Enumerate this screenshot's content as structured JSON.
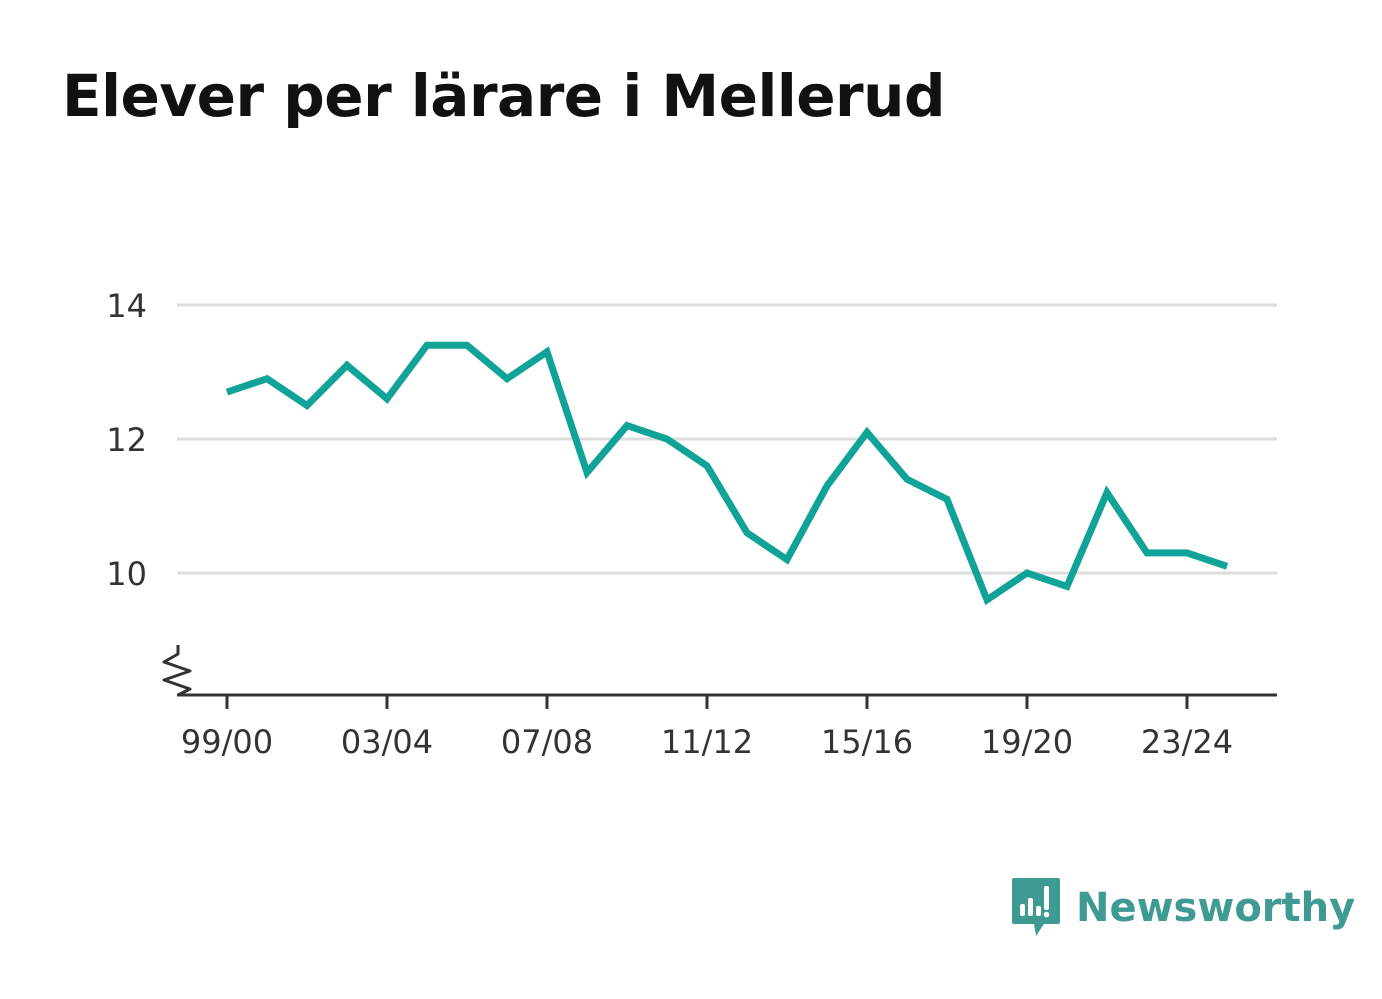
{
  "title": "Elever per lärare i Mellerud",
  "brand": {
    "name": "Newsworthy",
    "color": "#3f9a93"
  },
  "colors": {
    "line": "#11a398",
    "grid": "#dddddd",
    "axis": "#333333"
  },
  "chart_data": {
    "type": "line",
    "title": "Elever per lärare i Mellerud",
    "x": [
      "99/00",
      "00/01",
      "01/02",
      "02/03",
      "03/04",
      "04/05",
      "05/06",
      "06/07",
      "07/08",
      "08/09",
      "09/10",
      "10/11",
      "11/12",
      "12/13",
      "13/14",
      "14/15",
      "15/16",
      "16/17",
      "17/18",
      "18/19",
      "19/20",
      "20/21",
      "21/22",
      "22/23",
      "23/24",
      "24/25"
    ],
    "xticks": [
      "99/00",
      "03/04",
      "07/08",
      "11/12",
      "15/16",
      "19/20",
      "23/24"
    ],
    "series": [
      {
        "values": [
          12.7,
          12.9,
          12.5,
          13.1,
          12.6,
          13.4,
          13.4,
          12.9,
          13.3,
          11.5,
          12.2,
          12.0,
          11.6,
          10.6,
          10.2,
          11.3,
          12.1,
          11.4,
          11.1,
          9.6,
          10.0,
          9.8,
          11.2,
          10.3,
          10.3,
          10.1
        ]
      }
    ],
    "yticks": [
      10,
      12,
      14
    ],
    "ylim": [
      8.2,
      14
    ],
    "y_axis_break": true,
    "grid": true,
    "xlabel": "",
    "ylabel": ""
  }
}
